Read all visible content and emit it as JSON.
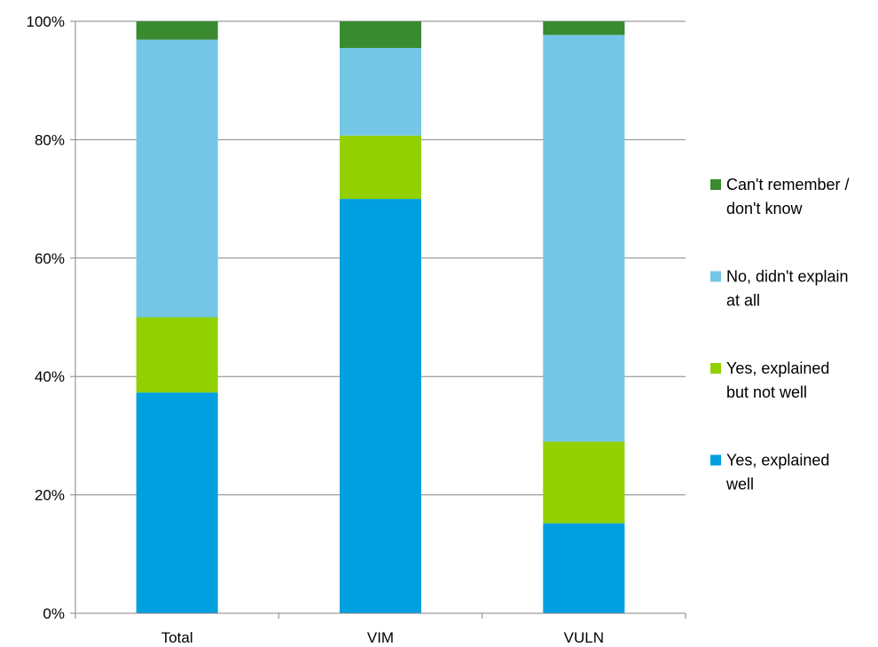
{
  "chart_data": {
    "type": "bar",
    "stacked": true,
    "categories": [
      "Total",
      "VIM",
      "VULN"
    ],
    "series": [
      {
        "name": "Yes, explained well",
        "color": "#009fe0",
        "values": [
          37.3,
          70.0,
          15.2
        ]
      },
      {
        "name": "Yes, explained but not well",
        "color": "#92d000",
        "values": [
          12.7,
          10.7,
          13.8
        ]
      },
      {
        "name": "No, didn't explain at all",
        "color": "#74c6e6",
        "values": [
          46.9,
          14.8,
          68.7
        ]
      },
      {
        "name": "Can't remember / don't know",
        "color": "#3a8a30",
        "values": [
          3.1,
          4.5,
          2.3
        ]
      }
    ],
    "ylim": [
      0,
      100
    ],
    "yticks": [
      "0%",
      "20%",
      "40%",
      "60%",
      "80%",
      "100%"
    ],
    "grid": true,
    "legend_position": "right",
    "legend_entries": [
      {
        "series": 3,
        "lines": [
          "Can't remember /",
          "don't know"
        ]
      },
      {
        "series": 2,
        "lines": [
          "No, didn't explain",
          "at all"
        ]
      },
      {
        "series": 1,
        "lines": [
          "Yes, explained",
          "but not well"
        ]
      },
      {
        "series": 0,
        "lines": [
          "Yes, explained",
          "well"
        ]
      }
    ]
  }
}
